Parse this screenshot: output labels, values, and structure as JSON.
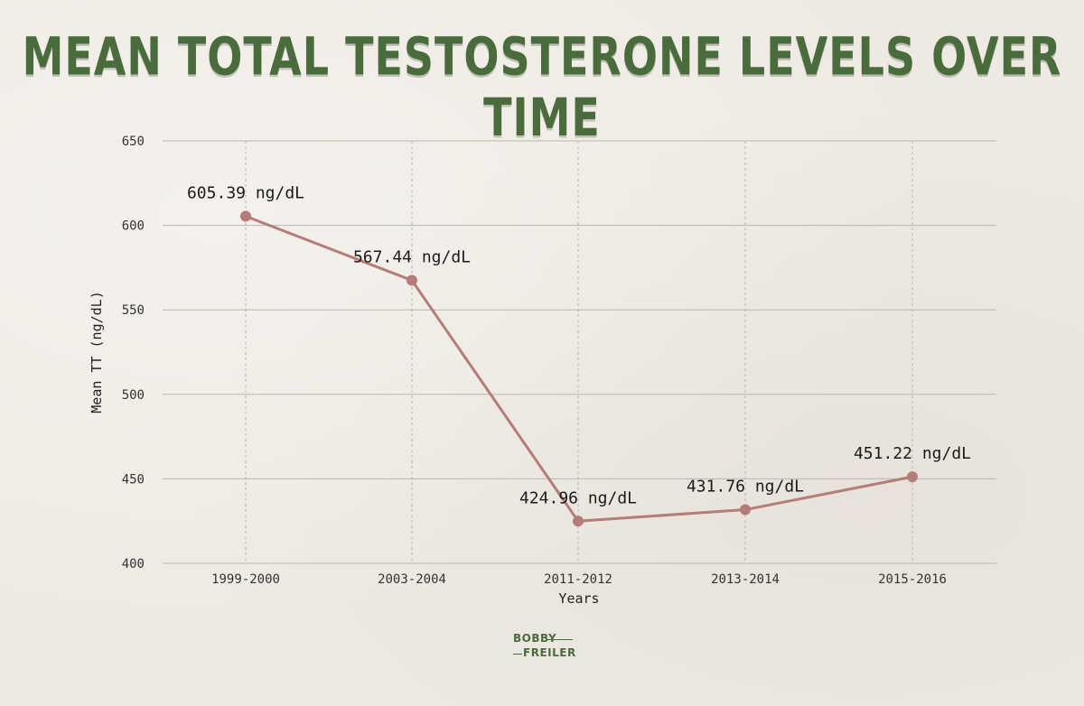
{
  "chart_data": {
    "type": "line",
    "title": "MEAN TOTAL TESTOSTERONE LEVELS OVER TIME",
    "xlabel": "Years",
    "ylabel": "Mean TT (ng/dL)",
    "categories": [
      "1999-2000",
      "2003-2004",
      "2011-2012",
      "2013-2014",
      "2015-2016"
    ],
    "series": [
      {
        "values": [
          605.39,
          567.44,
          424.96,
          431.76,
          451.22
        ],
        "data_labels": [
          "605.39 ng/dL",
          "567.44 ng/dL",
          "424.96 ng/dL",
          "431.76 ng/dL",
          "451.22 ng/dL"
        ]
      }
    ],
    "ylim": [
      400,
      650
    ],
    "yticks": [
      400,
      450,
      500,
      550,
      600,
      650
    ],
    "ytick_labels": [
      "400",
      "450",
      "500",
      "550",
      "600",
      "650"
    ],
    "grid": true,
    "line_color": "#b47d78"
  },
  "colors": {
    "title": "#4a6b3b",
    "grid": "#b9b6b0",
    "line": "#b47d78"
  },
  "logo": {
    "line1": "BOBBY",
    "line2": "FREILER"
  }
}
